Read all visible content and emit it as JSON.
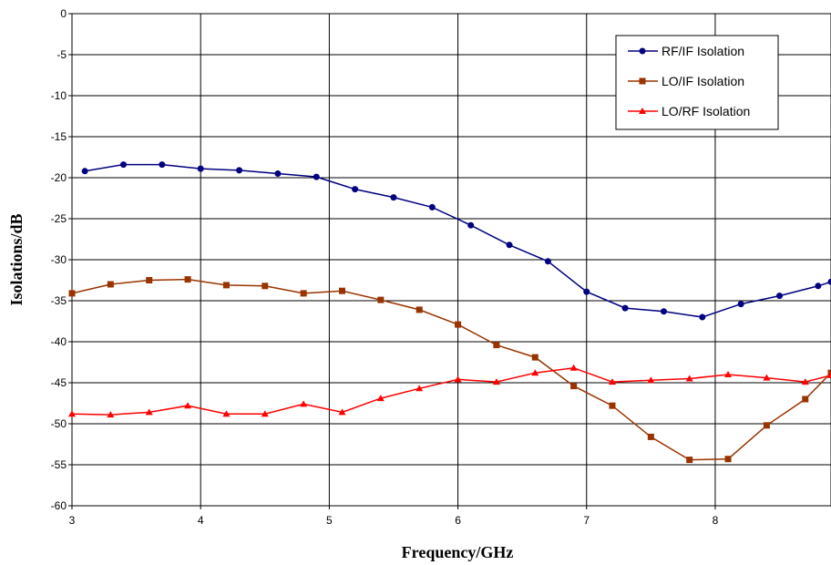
{
  "chart_data": {
    "type": "line",
    "xlabel": "Frequency/GHz",
    "ylabel": "Isolations/dB",
    "xlim": [
      3,
      8.9
    ],
    "ylim": [
      -60,
      0
    ],
    "x_ticks": [
      3,
      4,
      5,
      6,
      7,
      8
    ],
    "y_ticks": [
      0,
      -5,
      -10,
      -15,
      -20,
      -25,
      -30,
      -35,
      -40,
      -45,
      -50,
      -55,
      -60
    ],
    "grid": true,
    "legend_position": "top-right",
    "series": [
      {
        "name": "RF/IF Isolation",
        "color": "#000080",
        "marker": "circle",
        "x": [
          3.1,
          3.4,
          3.7,
          4.0,
          4.3,
          4.6,
          4.9,
          5.2,
          5.5,
          5.8,
          6.1,
          6.4,
          6.7,
          7.0,
          7.3,
          7.6,
          7.9,
          8.2,
          8.5,
          8.8,
          8.9
        ],
        "y": [
          -19.2,
          -18.4,
          -18.4,
          -18.9,
          -19.1,
          -19.5,
          -19.9,
          -21.4,
          -22.4,
          -23.6,
          -25.8,
          -28.2,
          -30.2,
          -33.9,
          -35.9,
          -36.3,
          -37.0,
          -35.4,
          -34.4,
          -33.2,
          -32.7
        ]
      },
      {
        "name": "LO/IF Isolation",
        "color": "#993300",
        "marker": "square",
        "x": [
          3.0,
          3.3,
          3.6,
          3.9,
          4.2,
          4.5,
          4.8,
          5.1,
          5.4,
          5.7,
          6.0,
          6.3,
          6.6,
          6.9,
          7.2,
          7.5,
          7.8,
          8.1,
          8.4,
          8.7,
          8.9
        ],
        "y": [
          -34.1,
          -33.0,
          -32.5,
          -32.4,
          -33.1,
          -33.2,
          -34.1,
          -33.8,
          -34.9,
          -36.1,
          -37.9,
          -40.4,
          -41.9,
          -45.4,
          -47.8,
          -51.6,
          -54.4,
          -54.3,
          -50.2,
          -47.0,
          -43.8
        ]
      },
      {
        "name": "LO/RF Isolation",
        "color": "#ff0000",
        "marker": "triangle",
        "x": [
          3.0,
          3.3,
          3.6,
          3.9,
          4.2,
          4.5,
          4.8,
          5.1,
          5.4,
          5.7,
          6.0,
          6.3,
          6.6,
          6.9,
          7.2,
          7.5,
          7.8,
          8.1,
          8.4,
          8.7,
          8.9
        ],
        "y": [
          -48.8,
          -48.9,
          -48.6,
          -47.8,
          -48.8,
          -48.8,
          -47.6,
          -48.6,
          -46.9,
          -45.7,
          -44.6,
          -44.9,
          -43.8,
          -43.2,
          -44.9,
          -44.7,
          -44.5,
          -44.0,
          -44.4,
          -44.9,
          -44.1
        ]
      }
    ]
  }
}
